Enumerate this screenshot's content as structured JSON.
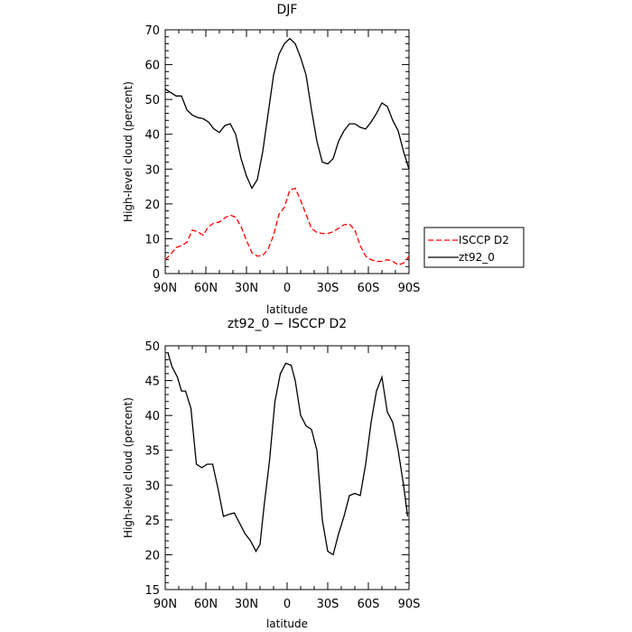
{
  "chart_data": [
    {
      "type": "line",
      "title": "DJF",
      "xlabel": "latitude",
      "ylabel": "High-level cloud (percent)",
      "xlim": [
        90,
        -90
      ],
      "ylim": [
        0,
        70
      ],
      "xticks": [
        "90N",
        "60N",
        "30N",
        "0",
        "30S",
        "60S",
        "90S"
      ],
      "yticks": [
        "0",
        "10",
        "20",
        "30",
        "40",
        "50",
        "60",
        "70"
      ],
      "legend_position": "right",
      "series": [
        {
          "name": "ISCCP D2",
          "color": "#ff0000",
          "dash": "dashed",
          "x": [
            90,
            86,
            82,
            78,
            74,
            70,
            66,
            62,
            58,
            54,
            50,
            46,
            42,
            38,
            34,
            30,
            26,
            22,
            18,
            14,
            10,
            6,
            2,
            -2,
            -6,
            -10,
            -14,
            -18,
            -22,
            -26,
            -30,
            -34,
            -38,
            -42,
            -46,
            -50,
            -54,
            -58,
            -62,
            -66,
            -70,
            -74,
            -78,
            -82,
            -86,
            -90
          ],
          "y": [
            4,
            5.5,
            7.5,
            8,
            9,
            12.5,
            12,
            11,
            13.5,
            14.5,
            14.8,
            16,
            16.8,
            16.2,
            13.5,
            9.5,
            6,
            5,
            5.2,
            7,
            11,
            17,
            19,
            24,
            24.5,
            21,
            17,
            13,
            11.8,
            11.5,
            11.5,
            12,
            13,
            14,
            14.2,
            12.5,
            8,
            5,
            4,
            3.5,
            3.5,
            4,
            3.5,
            2.5,
            3,
            5
          ]
        },
        {
          "name": "zt92_0",
          "color": "#000000",
          "dash": "solid",
          "x": [
            90,
            86,
            82,
            78,
            74,
            70,
            66,
            62,
            58,
            54,
            50,
            46,
            42,
            38,
            34,
            30,
            26,
            22,
            18,
            14,
            10,
            6,
            2,
            -2,
            -6,
            -10,
            -14,
            -18,
            -22,
            -26,
            -30,
            -34,
            -38,
            -42,
            -46,
            -50,
            -54,
            -58,
            -62,
            -66,
            -70,
            -74,
            -78,
            -82,
            -86,
            -90
          ],
          "y": [
            53,
            52,
            51,
            51,
            47,
            45.5,
            44.8,
            44.5,
            43.5,
            41.5,
            40.5,
            42.5,
            43,
            40,
            33,
            28,
            24.5,
            27,
            35,
            46,
            57,
            63,
            66,
            67.5,
            66,
            62,
            57,
            47,
            38,
            32,
            31.5,
            33,
            38,
            41,
            43,
            43,
            42,
            41.5,
            43.5,
            46,
            49,
            48,
            44,
            41,
            35,
            30
          ]
        }
      ]
    },
    {
      "type": "line",
      "title": "zt92_0 − ISCCP D2",
      "xlabel": "latitude",
      "ylabel": "High-level cloud (percent)",
      "xlim": [
        90,
        -90
      ],
      "ylim": [
        15,
        50
      ],
      "xticks": [
        "90N",
        "60N",
        "30N",
        "0",
        "30S",
        "60S",
        "90S"
      ],
      "yticks": [
        "15",
        "20",
        "25",
        "30",
        "35",
        "40",
        "45",
        "50"
      ],
      "series": [
        {
          "color": "#000000",
          "dash": "solid",
          "x": [
            88,
            85,
            81,
            78,
            75,
            71,
            67,
            63,
            59,
            55,
            51,
            47,
            43,
            39,
            35,
            31,
            27,
            23,
            20,
            17,
            13,
            9,
            5,
            1,
            -3,
            -6,
            -10,
            -14,
            -18,
            -22,
            -26,
            -30,
            -34,
            -38,
            -42,
            -46,
            -50,
            -54,
            -58,
            -62,
            -66,
            -70,
            -74,
            -78,
            -82,
            -86,
            -89
          ],
          "y": [
            49,
            47,
            45.5,
            43.5,
            43.5,
            41,
            33,
            32.5,
            33,
            33,
            29.5,
            25.5,
            25.8,
            26,
            24.5,
            23,
            22,
            20.5,
            21.5,
            27,
            33.5,
            42,
            46,
            47.5,
            47.2,
            45,
            40,
            38.5,
            38,
            35,
            25,
            20.5,
            20,
            23,
            25.5,
            28.5,
            28.8,
            28.5,
            33,
            39,
            43.5,
            45.5,
            40.5,
            39,
            35,
            30,
            25.5
          ]
        }
      ]
    }
  ]
}
